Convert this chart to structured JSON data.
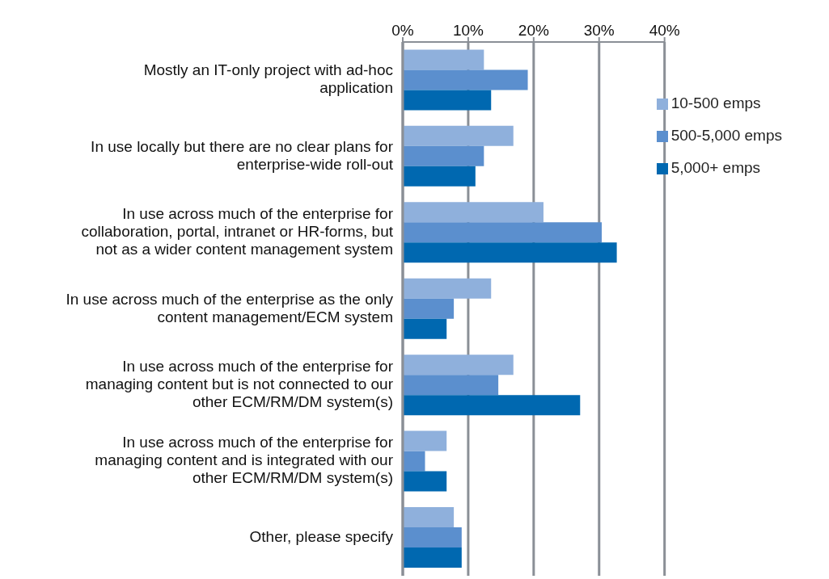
{
  "chart_data": {
    "type": "bar",
    "orientation": "horizontal",
    "categories": [
      "Mostly an IT-only project with ad-hoc application",
      "In use locally but there are no clear plans for enterprise-wide roll-out",
      "In use across much of the enterprise for collaboration, portal, intranet or HR-forms, but not as a wider content management system",
      "In use across much of the enterprise as the only content management/ECM  system",
      "In use across much of the enterprise for managing content but is not connected to our other ECM/RM/DM system(s)",
      "In use across much of the enterprise for managing content and is integrated with our other ECM/RM/DM system(s)",
      "Other, please specify"
    ],
    "series": [
      {
        "name": "10-500 emps",
        "color": "#8fb0dc",
        "values": [
          12.4,
          16.9,
          21.5,
          13.5,
          16.9,
          6.7,
          7.8
        ]
      },
      {
        "name": "500-5,000 emps",
        "color": "#5b8fce",
        "values": [
          19.1,
          12.4,
          30.4,
          7.8,
          14.6,
          3.4,
          9.0
        ]
      },
      {
        "name": "5,000+ emps",
        "color": "#0068b0",
        "values": [
          13.5,
          11.1,
          32.7,
          6.7,
          27.1,
          6.7,
          9.0
        ]
      }
    ],
    "xlim": [
      0,
      40
    ],
    "xticks": [
      {
        "value": 0,
        "label": "0%"
      },
      {
        "value": 10,
        "label": "10%"
      },
      {
        "value": 20,
        "label": "20%"
      },
      {
        "value": 30,
        "label": "30%"
      },
      {
        "value": 40,
        "label": "40%"
      }
    ],
    "grid": "x",
    "legend": "top right"
  }
}
